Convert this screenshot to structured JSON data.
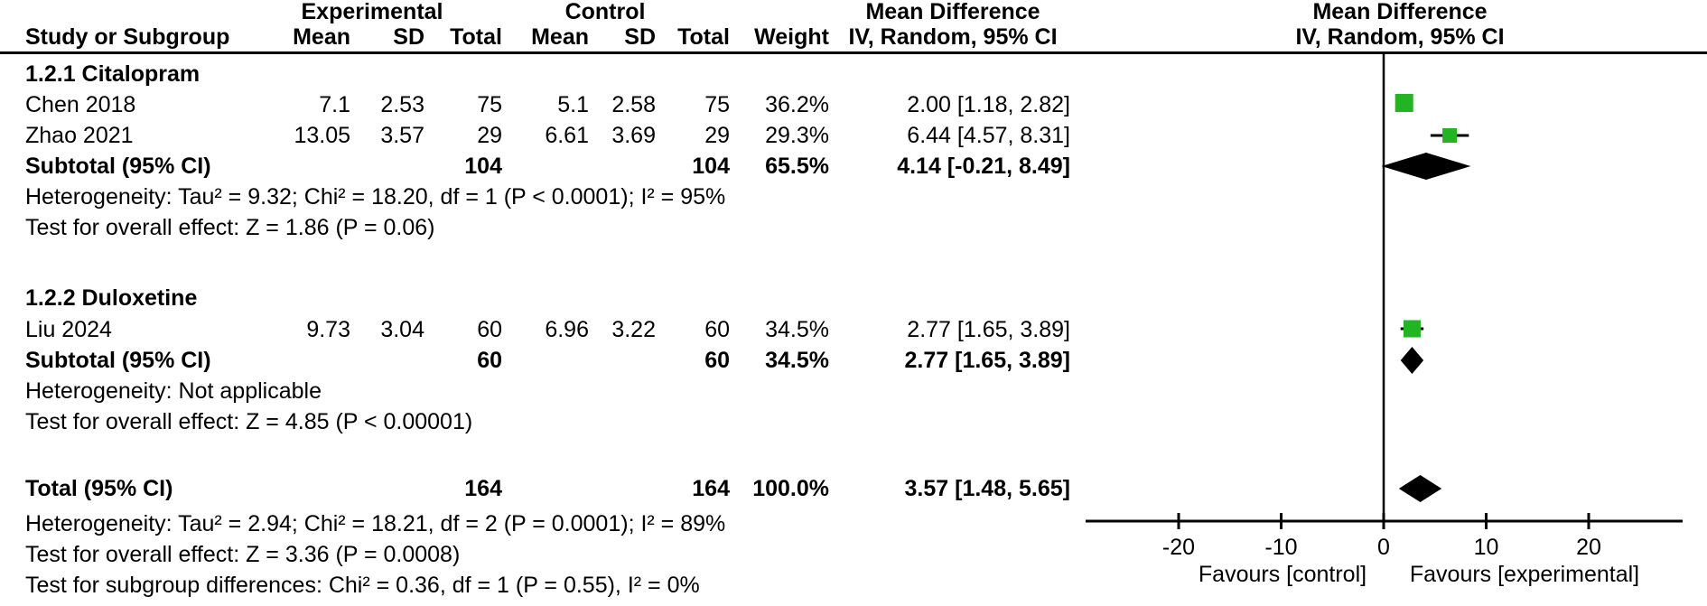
{
  "header": {
    "group_experimental": "Experimental",
    "group_control": "Control",
    "mean_difference_1": "Mean Difference",
    "mean_difference_2": "Mean Difference",
    "col_study": "Study or Subgroup",
    "col_mean_1": "Mean",
    "col_sd_1": "SD",
    "col_total_1": "Total",
    "col_mean_2": "Mean",
    "col_sd_2": "SD",
    "col_total_2": "Total",
    "col_weight": "Weight",
    "ci_method_1": "IV, Random, 95% CI",
    "ci_method_2": "IV, Random, 95% CI"
  },
  "sections": [
    {
      "label": "1.2.1 Citalopram",
      "studies": [
        {
          "name": "Chen 2018",
          "mean1": "7.1",
          "sd1": "2.53",
          "total1": "75",
          "mean2": "5.1",
          "sd2": "2.58",
          "total2": "75",
          "weight": "36.2%",
          "ci": "2.00 [1.18, 2.82]"
        },
        {
          "name": "Zhao 2021",
          "mean1": "13.05",
          "sd1": "3.57",
          "total1": "29",
          "mean2": "6.61",
          "sd2": "3.69",
          "total2": "29",
          "weight": "29.3%",
          "ci": "6.44 [4.57, 8.31]"
        }
      ],
      "subtotal": {
        "label": "Subtotal (95% CI)",
        "total1": "104",
        "total2": "104",
        "weight": "65.5%",
        "ci": "4.14 [-0.21, 8.49]"
      },
      "heterogeneity": "Heterogeneity: Tau² = 9.32; Chi² = 18.20, df = 1 (P < 0.0001); I² = 95%",
      "overall_effect": "Test for overall effect: Z = 1.86 (P = 0.06)"
    },
    {
      "label": "1.2.2 Duloxetine",
      "studies": [
        {
          "name": "Liu 2024",
          "mean1": "9.73",
          "sd1": "3.04",
          "total1": "60",
          "mean2": "6.96",
          "sd2": "3.22",
          "total2": "60",
          "weight": "34.5%",
          "ci": "2.77 [1.65, 3.89]"
        }
      ],
      "subtotal": {
        "label": "Subtotal (95% CI)",
        "total1": "60",
        "total2": "60",
        "weight": "34.5%",
        "ci": "2.77 [1.65, 3.89]"
      },
      "heterogeneity": "Heterogeneity: Not applicable",
      "overall_effect": "Test for overall effect: Z = 4.85 (P < 0.00001)"
    }
  ],
  "total": {
    "label": "Total (95% CI)",
    "total1": "164",
    "total2": "164",
    "weight": "100.0%",
    "ci": "3.57 [1.48, 5.65]",
    "heterogeneity": "Heterogeneity: Tau² = 2.94; Chi² = 18.21, df = 2 (P = 0.0001); I² = 89%",
    "overall_effect": "Test for overall effect: Z = 3.36 (P = 0.0008)",
    "subgroup_differences": "Test for subgroup differences: Chi² = 0.36, df = 1 (P = 0.55), I² = 0%"
  },
  "colors": {
    "marker_green": "#22B422",
    "line_black": "#000000"
  },
  "chart_data": {
    "type": "forest",
    "effect_measure": "Mean Difference",
    "model": "IV, Random, 95% CI",
    "x_ticks": [
      -20,
      -10,
      0,
      10,
      20
    ],
    "xlim": [
      -29,
      29
    ],
    "axis_label_left": "Favours [control]",
    "axis_label_right": "Favours [experimental]",
    "points": [
      {
        "study": "Chen 2018",
        "type": "square",
        "md": 2.0,
        "lo": 1.18,
        "hi": 2.82,
        "weight": 36.2,
        "y": 114
      },
      {
        "study": "Zhao 2021",
        "type": "square",
        "md": 6.44,
        "lo": 4.57,
        "hi": 8.31,
        "weight": 29.3,
        "y": 150
      },
      {
        "study": "Subtotal Citalopram",
        "type": "diamond",
        "md": 4.14,
        "lo": -0.21,
        "hi": 8.49,
        "y": 184
      },
      {
        "study": "Liu 2024",
        "type": "square",
        "md": 2.77,
        "lo": 1.65,
        "hi": 3.89,
        "weight": 34.5,
        "y": 364
      },
      {
        "study": "Subtotal Duloxetine",
        "type": "diamond",
        "md": 2.77,
        "lo": 1.65,
        "hi": 3.89,
        "y": 399
      },
      {
        "study": "Total",
        "type": "diamond",
        "md": 3.57,
        "lo": 1.48,
        "hi": 5.65,
        "y": 541
      }
    ]
  }
}
